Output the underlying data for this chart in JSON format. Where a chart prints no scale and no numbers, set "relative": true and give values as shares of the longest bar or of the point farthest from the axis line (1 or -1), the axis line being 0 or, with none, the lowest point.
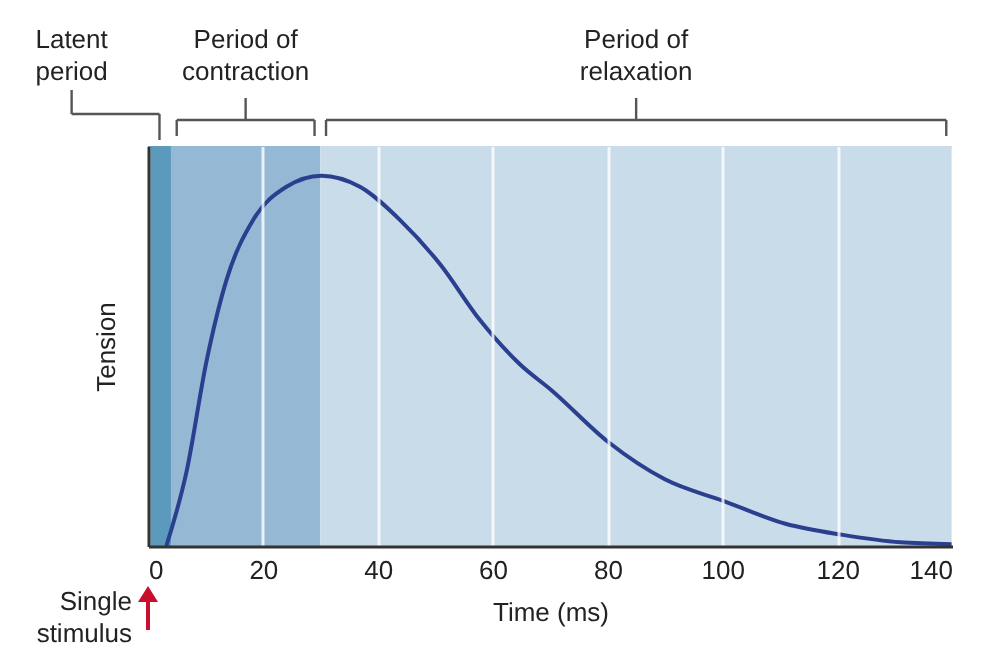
{
  "chart_data": {
    "type": "line",
    "xlabel": "Time (ms)",
    "ylabel": "Tension",
    "xlim": [
      0,
      140
    ],
    "xticks": [
      0,
      20,
      40,
      60,
      80,
      100,
      120,
      140
    ],
    "relative": true,
    "grid": "x",
    "series": [
      {
        "color": "#2b3f8f",
        "x": [
          3.2,
          6.7,
          10.2,
          13.7,
          18.3,
          24.1,
          30.2,
          36.9,
          43.9,
          50.9,
          57.8,
          64.8,
          70.3,
          80.2,
          90.0,
          100.5,
          111,
          121,
          131,
          140
        ],
        "values": [
          0,
          0.2,
          0.5,
          0.72,
          0.88,
          0.97,
          1,
          0.97,
          0.88,
          0.76,
          0.61,
          0.49,
          0.42,
          0.28,
          0.18,
          0.12,
          0.06,
          0.03,
          0.01,
          0.005
        ]
      }
    ],
    "bands": [
      {
        "axis": "x",
        "from": 0,
        "to": 4,
        "label": "Latent period",
        "color": "#5b9abd"
      },
      {
        "axis": "x",
        "from": 4,
        "to": 30,
        "label": "Period of contraction",
        "color": "#95b9d5"
      },
      {
        "axis": "x",
        "from": 30,
        "to": 140,
        "label": "Period of relaxation",
        "color": "#c9dcea"
      }
    ],
    "annotations": [
      "Single stimulus"
    ]
  }
}
